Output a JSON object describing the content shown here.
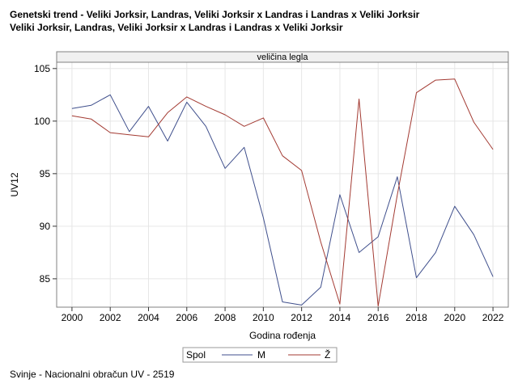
{
  "header": {
    "title_line1": "Genetski trend - Veliki Jorksir, Landras, Veliki Jorksir x Landras i Landras x Veliki Jorksir",
    "title_line2": "Veliki Jorksir, Landras, Veliki Jorksir x Landras i Landras x Veliki Jorksir"
  },
  "footer": {
    "note": "Svinje - Nacionalni obračun UV - 2519"
  },
  "chart_data": {
    "type": "line",
    "panel_label": "veličina legla",
    "xlabel": "Godina rođenja",
    "ylabel": "UV12",
    "xlim": [
      1999.2,
      2022.8
    ],
    "ylim": [
      82.3,
      105.6
    ],
    "x_ticks": [
      2000,
      2002,
      2004,
      2006,
      2008,
      2010,
      2012,
      2014,
      2016,
      2018,
      2020,
      2022
    ],
    "y_ticks": [
      85,
      90,
      95,
      100,
      105
    ],
    "grid": true,
    "x": [
      2000,
      2001,
      2002,
      2003,
      2004,
      2005,
      2006,
      2007,
      2008,
      2009,
      2010,
      2011,
      2012,
      2013,
      2014,
      2015,
      2016,
      2017,
      2018,
      2019,
      2020,
      2021,
      2022
    ],
    "series": [
      {
        "name": "M",
        "color": "#3f4f8c",
        "values": [
          101.2,
          101.5,
          102.5,
          99.0,
          101.4,
          98.1,
          101.8,
          99.5,
          95.5,
          97.5,
          90.8,
          82.8,
          82.5,
          84.2,
          93.0,
          87.5,
          89.0,
          94.7,
          85.1,
          87.5,
          91.9,
          89.2,
          85.2
        ]
      },
      {
        "name": "Ž",
        "color": "#a33a32",
        "values": [
          100.5,
          100.2,
          98.9,
          98.7,
          98.5,
          100.8,
          102.3,
          101.4,
          100.6,
          99.5,
          100.3,
          96.7,
          95.3,
          88.5,
          82.6,
          102.1,
          82.4,
          93.0,
          102.7,
          103.9,
          104.0,
          99.9,
          97.3
        ]
      }
    ],
    "legend": {
      "title": "Spol",
      "placement": "bottom-center"
    }
  }
}
